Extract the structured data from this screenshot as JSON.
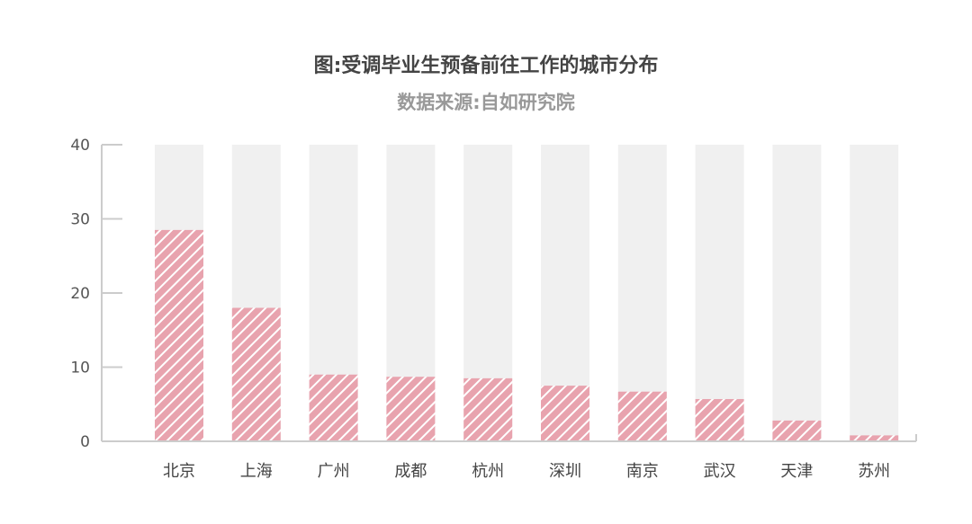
{
  "chart_data": {
    "type": "bar",
    "title": "图:受调毕业生预备前往工作的城市分布",
    "subtitle": "数据来源:自如研究院",
    "categories": [
      "北京",
      "上海",
      "广州",
      "成都",
      "杭州",
      "深圳",
      "南京",
      "武汉",
      "天津",
      "苏州"
    ],
    "values": [
      28.5,
      18,
      9,
      8.7,
      8.5,
      7.5,
      6.7,
      5.7,
      2.8,
      0.8
    ],
    "ylim": [
      0,
      40
    ],
    "yticks": [
      "0",
      "10",
      "20",
      "30",
      "40"
    ],
    "xlabel": "",
    "ylabel": "",
    "grid": false,
    "colors": {
      "bar": "#e8a3ae",
      "hatch": "#ffffff",
      "background_bar": "#f0f0f0",
      "axis": "#cccccc"
    }
  }
}
